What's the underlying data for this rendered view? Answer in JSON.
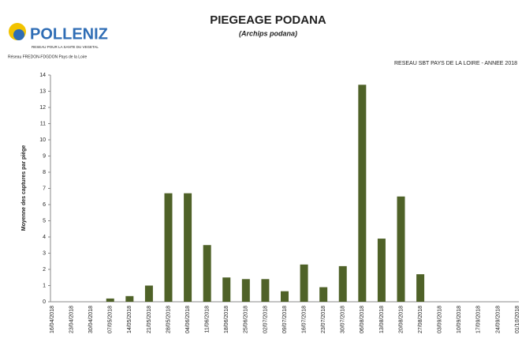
{
  "logo": {
    "name": "POLLENIZ",
    "tagline": "RESEAU POUR LA SANTE DU VEGETAL",
    "network": "Réseau FREDON-FDGDON Pays de la Loire"
  },
  "chart_data": {
    "type": "bar",
    "title": "PIEGEAGE PODANA",
    "subtitle": "(Archips podana)",
    "annotation": "RESEAU SBT PAYS DE LA LOIRE - ANNEE 2018",
    "y_label": "Moyenne des captures par piège",
    "categories": [
      "16/04/2018",
      "23/04/2018",
      "30/04/2018",
      "07/05/2018",
      "14/05/2018",
      "21/05/2018",
      "28/05/2018",
      "04/06/2018",
      "11/06/2018",
      "18/06/2018",
      "25/06/2018",
      "02/07/2018",
      "09/07/2018",
      "16/07/2018",
      "23/07/2018",
      "30/07/2018",
      "06/08/2018",
      "13/08/2018",
      "20/08/2018",
      "27/08/2018",
      "03/09/2018",
      "10/09/2018",
      "17/09/2018",
      "24/09/2018",
      "01/10/2018"
    ],
    "values": [
      0,
      0,
      0,
      0.2,
      0.35,
      1.0,
      6.7,
      6.7,
      3.5,
      1.5,
      1.4,
      1.4,
      0.65,
      2.3,
      0.9,
      2.2,
      13.4,
      3.9,
      6.5,
      1.7,
      0,
      0,
      0,
      0,
      0
    ],
    "color": "#4f6228",
    "ylim": [
      0,
      14
    ],
    "yticks": [
      0,
      1,
      2,
      3,
      4,
      5,
      6,
      7,
      8,
      9,
      10,
      11,
      12,
      13,
      14
    ],
    "grid": false
  }
}
